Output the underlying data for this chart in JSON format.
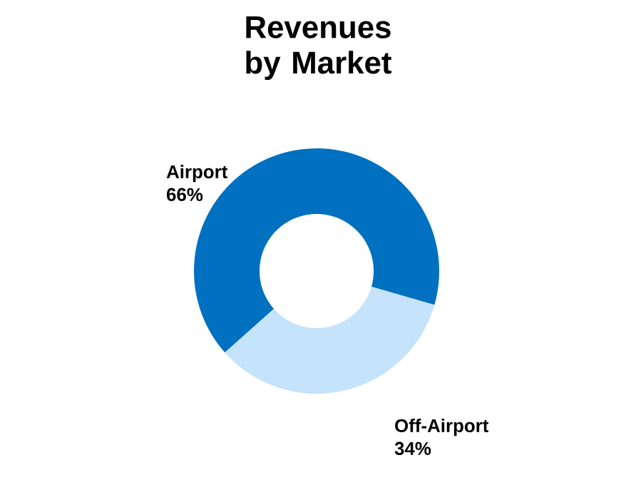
{
  "chart_data": {
    "type": "donut",
    "title": "Revenues by Market",
    "categories": [
      "Airport",
      "Off-Airport"
    ],
    "values": [
      66,
      34
    ],
    "colors": [
      "#0070c0",
      "#c5e3fb"
    ],
    "value_labels": [
      "66%",
      "34%"
    ]
  }
}
